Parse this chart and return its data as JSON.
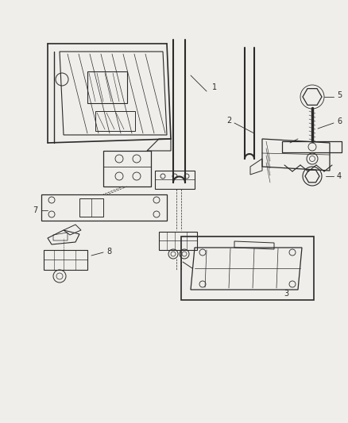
{
  "bg_color": "#f0eeeb",
  "line_color": "#2a2a2a",
  "label_color": "#2a2a2a",
  "fig_width": 4.38,
  "fig_height": 5.33,
  "dpi": 100
}
